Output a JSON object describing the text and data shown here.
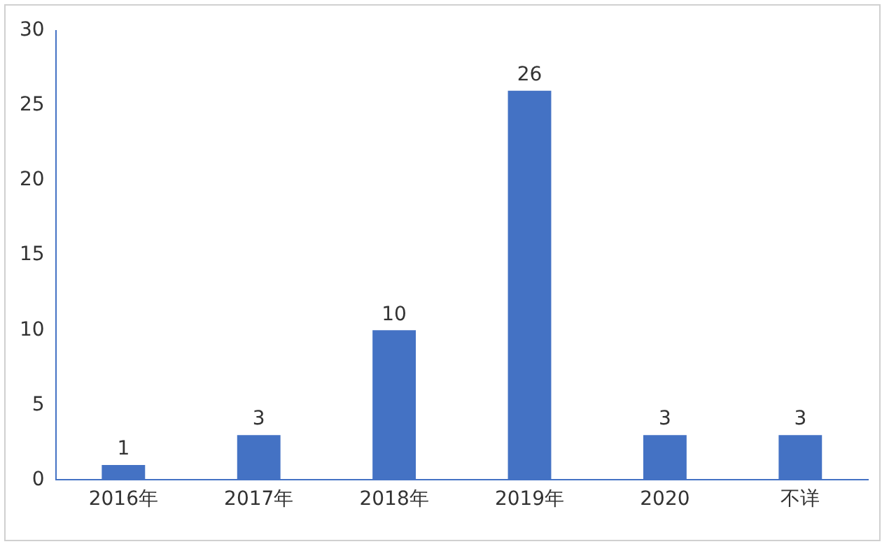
{
  "chart_data": {
    "type": "bar",
    "categories": [
      "2016年",
      "2017年",
      "2018年",
      "2019年",
      "2020",
      "不详"
    ],
    "values": [
      1,
      3,
      10,
      26,
      3,
      3
    ],
    "color": "#4472c4",
    "ylim": [
      0,
      30
    ],
    "yticks": [
      0,
      5,
      10,
      15,
      20,
      25,
      30
    ],
    "grid": false,
    "legend": false,
    "data_labels": true
  }
}
